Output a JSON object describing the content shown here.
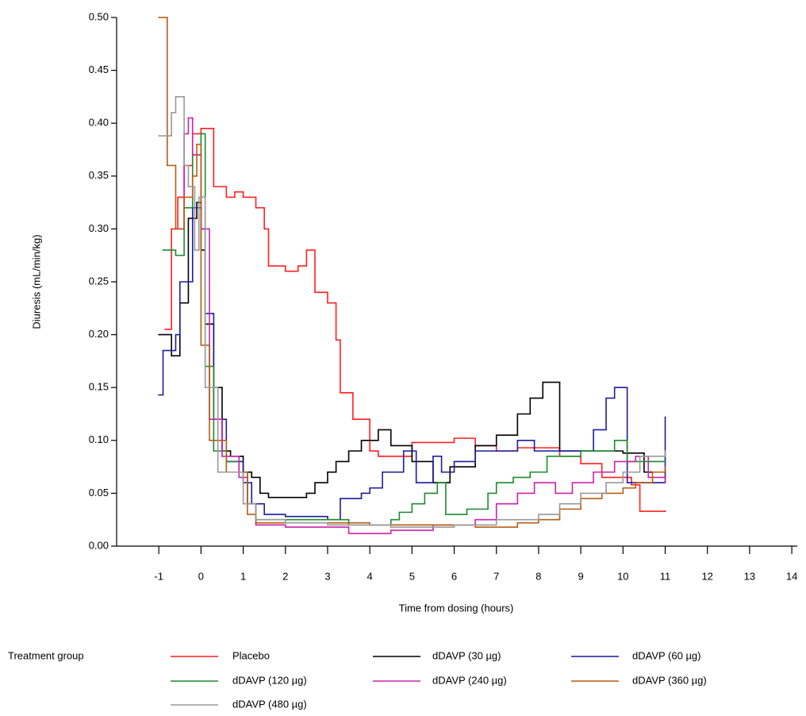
{
  "chart_data": {
    "type": "line",
    "step": true,
    "x_label": "Time from dosing (hours)",
    "y_label": "Diuresis (mL/min/kg)",
    "legend_title": "Treatment group",
    "xlim": [
      -2,
      14.13
    ],
    "ylim": [
      0,
      0.5
    ],
    "xticks": [
      -1,
      0,
      1,
      2,
      3,
      4,
      5,
      6,
      7,
      8,
      9,
      10,
      11,
      12,
      13,
      14
    ],
    "yticks": [
      {
        "value": 0,
        "label": "0.00"
      },
      {
        "value": 0.05,
        "label": "0.05"
      },
      {
        "value": 0.1,
        "label": "0.10"
      },
      {
        "value": 0.15,
        "label": "0.15"
      },
      {
        "value": 0.2,
        "label": "0.20"
      },
      {
        "value": 0.25,
        "label": "0.25"
      },
      {
        "value": 0.3,
        "label": "0.30"
      },
      {
        "value": 0.35,
        "label": "0.35"
      },
      {
        "value": 0.4,
        "label": "0.40"
      },
      {
        "value": 0.45,
        "label": "0.45"
      },
      {
        "value": 0.5,
        "label": "0.50"
      }
    ],
    "series": [
      {
        "name": "Placebo",
        "color": "#ff1f1f",
        "x": [
          -0.85,
          -0.7,
          -0.55,
          -0.4,
          -0.2,
          0,
          0.3,
          0.6,
          0.8,
          1.0,
          1.3,
          1.5,
          1.6,
          2.0,
          2.3,
          2.5,
          2.7,
          3.0,
          3.2,
          3.3,
          3.6,
          4.0,
          4.2,
          5.0,
          6.0,
          6.5,
          7.0,
          7.5,
          8.5,
          9.0,
          9.5,
          10.2,
          10.4,
          11.0
        ],
        "values": [
          0.205,
          0.3,
          0.33,
          0.36,
          0.39,
          0.395,
          0.34,
          0.33,
          0.335,
          0.33,
          0.32,
          0.3,
          0.265,
          0.26,
          0.265,
          0.28,
          0.24,
          0.23,
          0.195,
          0.145,
          0.12,
          0.09,
          0.085,
          0.098,
          0.102,
          0.095,
          0.09,
          0.093,
          0.085,
          0.078,
          0.065,
          0.058,
          0.033,
          0.033
        ]
      },
      {
        "name": "dDAVP (30 µg)",
        "color": "#000000",
        "x": [
          -1.0,
          -0.7,
          -0.5,
          -0.3,
          -0.1,
          0,
          0.1,
          0.3,
          0.5,
          0.7,
          1.0,
          1.2,
          1.4,
          1.6,
          2.5,
          2.7,
          3.0,
          3.2,
          3.5,
          3.8,
          4.2,
          4.5,
          5.0,
          5.5,
          5.9,
          6.5,
          7.0,
          7.5,
          7.8,
          8.1,
          8.5,
          9.0,
          10.0,
          10.5,
          11.0
        ],
        "values": [
          0.2,
          0.18,
          0.23,
          0.31,
          0.325,
          0.28,
          0.21,
          0.15,
          0.09,
          0.085,
          0.07,
          0.065,
          0.05,
          0.046,
          0.05,
          0.06,
          0.07,
          0.08,
          0.09,
          0.1,
          0.11,
          0.095,
          0.08,
          0.06,
          0.075,
          0.095,
          0.105,
          0.125,
          0.14,
          0.155,
          0.09,
          0.09,
          0.088,
          0.07,
          0.07
        ]
      },
      {
        "name": "dDAVP (60 µg)",
        "color": "#1c1c9c",
        "x": [
          -1.0,
          -0.9,
          -0.6,
          -0.5,
          -0.2,
          -0.1,
          0,
          0.1,
          0.3,
          0.6,
          1.0,
          1.2,
          1.5,
          2.0,
          3.0,
          3.3,
          3.8,
          4.0,
          4.3,
          4.8,
          5.1,
          5.5,
          5.7,
          6.0,
          6.5,
          7.0,
          7.5,
          7.9,
          8.5,
          9.0,
          9.3,
          9.6,
          9.8,
          10.1,
          10.5,
          11.0
        ],
        "values": [
          0.143,
          0.185,
          0.2,
          0.25,
          0.32,
          0.32,
          0.3,
          0.22,
          0.12,
          0.08,
          0.06,
          0.04,
          0.03,
          0.028,
          0.025,
          0.045,
          0.05,
          0.055,
          0.07,
          0.09,
          0.06,
          0.085,
          0.07,
          0.08,
          0.09,
          0.09,
          0.1,
          0.09,
          0.09,
          0.09,
          0.11,
          0.14,
          0.15,
          0.06,
          0.06,
          0.122
        ]
      },
      {
        "name": "dDAVP (120 µg)",
        "color": "#1b8c2c",
        "x": [
          -0.9,
          -0.6,
          -0.4,
          -0.2,
          0,
          0.1,
          0.3,
          0.6,
          0.9,
          1.1,
          1.3,
          2.0,
          3.5,
          4.5,
          4.7,
          5.0,
          5.3,
          5.6,
          5.8,
          6.3,
          6.8,
          7.0,
          7.4,
          7.8,
          8.2,
          9.0,
          9.5,
          9.8,
          10.1,
          10.5,
          11.0
        ],
        "values": [
          0.28,
          0.275,
          0.32,
          0.37,
          0.39,
          0.17,
          0.09,
          0.08,
          0.07,
          0.04,
          0.025,
          0.025,
          0.02,
          0.025,
          0.032,
          0.04,
          0.05,
          0.06,
          0.03,
          0.035,
          0.05,
          0.06,
          0.065,
          0.07,
          0.085,
          0.09,
          0.09,
          0.1,
          0.08,
          0.08,
          0.08
        ]
      },
      {
        "name": "dDAVP (240 µg)",
        "color": "#cc22aa",
        "x": [
          -0.6,
          -0.4,
          -0.3,
          -0.2,
          0,
          0.2,
          0.5,
          0.9,
          1.1,
          1.3,
          2.0,
          3.5,
          4.5,
          5.5,
          6.5,
          7.0,
          7.5,
          7.9,
          8.4,
          8.8,
          9.3,
          9.8,
          10.3,
          10.6,
          11.0
        ],
        "values": [
          0.3,
          0.39,
          0.405,
          0.37,
          0.3,
          0.12,
          0.085,
          0.065,
          0.04,
          0.02,
          0.018,
          0.012,
          0.015,
          0.02,
          0.025,
          0.04,
          0.05,
          0.06,
          0.05,
          0.06,
          0.07,
          0.08,
          0.085,
          0.065,
          0.06
        ]
      },
      {
        "name": "dDAVP (360 µg)",
        "color": "#b85c10",
        "x": [
          -1.0,
          -0.8,
          -0.6,
          -0.4,
          -0.2,
          -0.1,
          0,
          0.2,
          0.6,
          1.1,
          1.3,
          2.5,
          4.0,
          5.5,
          6.5,
          7.5,
          8.0,
          8.5,
          9.0,
          9.5,
          10.0,
          10.3,
          10.7,
          11.0
        ],
        "values": [
          0.5,
          0.36,
          0.3,
          0.33,
          0.35,
          0.38,
          0.19,
          0.1,
          0.07,
          0.03,
          0.022,
          0.022,
          0.02,
          0.02,
          0.018,
          0.022,
          0.025,
          0.035,
          0.045,
          0.05,
          0.055,
          0.06,
          0.07,
          0.075
        ]
      },
      {
        "name": "dDAVP (480 µg)",
        "color": "#999999",
        "x": [
          -1.0,
          -0.7,
          -0.6,
          -0.4,
          -0.3,
          -0.15,
          -0.05,
          0.1,
          0.4,
          1.0,
          1.3,
          2.0,
          3.0,
          4.5,
          6.0,
          7.0,
          8.0,
          8.5,
          9.0,
          9.6,
          10.0,
          10.4,
          11.0
        ],
        "values": [
          0.388,
          0.41,
          0.425,
          0.36,
          0.34,
          0.28,
          0.33,
          0.15,
          0.07,
          0.04,
          0.025,
          0.022,
          0.02,
          0.018,
          0.02,
          0.025,
          0.03,
          0.04,
          0.05,
          0.06,
          0.07,
          0.085,
          0.09
        ]
      }
    ]
  }
}
